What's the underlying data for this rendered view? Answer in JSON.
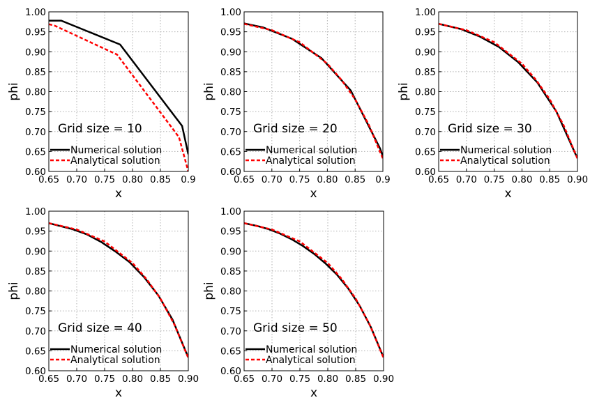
{
  "colors": {
    "numerical": "#000000",
    "analytical": "#ff0000",
    "grid": "#b0b0b0"
  },
  "chart_data": [
    {
      "type": "line",
      "annotation": "Grid size = 10",
      "xlabel": "x",
      "ylabel": "phi",
      "xlim": [
        0.65,
        0.9
      ],
      "ylim": [
        0.6,
        1.0
      ],
      "xticks": [
        "0.65",
        "0.70",
        "0.75",
        "0.80",
        "0.85",
        "0.9"
      ],
      "yticks": [
        "0.60",
        "0.65",
        "0.70",
        "0.75",
        "0.80",
        "0.85",
        "0.90",
        "0.95",
        "1.00"
      ],
      "grid": true,
      "legend_position": "lower-left",
      "series": [
        {
          "name": "Numerical solution",
          "style": "solid",
          "x": [
            0.65,
            0.6722,
            0.7778,
            0.8889,
            0.9
          ],
          "y": [
            0.978,
            0.978,
            0.918,
            0.714,
            0.643
          ]
        },
        {
          "name": "Analytical solution",
          "style": "dashed",
          "x": [
            0.65,
            0.6611,
            0.7722,
            0.8833,
            0.9
          ],
          "y": [
            0.969,
            0.965,
            0.893,
            0.686,
            0.6
          ]
        }
      ]
    },
    {
      "type": "line",
      "annotation": "Grid size = 20",
      "xlabel": "x",
      "ylabel": "phi",
      "xlim": [
        0.65,
        0.9
      ],
      "ylim": [
        0.6,
        1.0
      ],
      "xticks": [
        "0.65",
        "0.70",
        "0.75",
        "0.80",
        "0.85",
        "0.9"
      ],
      "yticks": [
        "0.60",
        "0.65",
        "0.70",
        "0.75",
        "0.80",
        "0.85",
        "0.90",
        "0.95",
        "1.00"
      ],
      "grid": true,
      "legend_position": "lower-left",
      "series": [
        {
          "name": "Numerical solution",
          "style": "solid",
          "x": [
            0.65,
            0.6842,
            0.7368,
            0.7895,
            0.8421,
            0.8947,
            0.9
          ],
          "y": [
            0.971,
            0.961,
            0.932,
            0.884,
            0.803,
            0.658,
            0.638
          ]
        },
        {
          "name": "Analytical solution",
          "style": "dashed",
          "x": [
            0.65,
            0.7,
            0.75,
            0.8,
            0.825,
            0.85,
            0.875,
            0.9
          ],
          "y": [
            0.97,
            0.954,
            0.924,
            0.87,
            0.83,
            0.781,
            0.716,
            0.632
          ]
        }
      ]
    },
    {
      "type": "line",
      "annotation": "Grid size = 30",
      "xlabel": "x",
      "ylabel": "phi",
      "xlim": [
        0.65,
        0.9
      ],
      "ylim": [
        0.6,
        1.0
      ],
      "xticks": [
        "0.65",
        "0.70",
        "0.75",
        "0.80",
        "0.85",
        "0.90"
      ],
      "yticks": [
        "0.60",
        "0.65",
        "0.70",
        "0.75",
        "0.80",
        "0.85",
        "0.90",
        "0.95",
        "1.00"
      ],
      "grid": true,
      "legend_position": "lower-left",
      "series": [
        {
          "name": "Numerical solution",
          "style": "solid",
          "x": [
            0.65,
            0.6897,
            0.7241,
            0.7586,
            0.7931,
            0.8276,
            0.8621,
            0.8966,
            0.9
          ],
          "y": [
            0.97,
            0.957,
            0.938,
            0.912,
            0.874,
            0.823,
            0.75,
            0.643,
            0.635
          ]
        },
        {
          "name": "Analytical solution",
          "style": "dashed",
          "x": [
            0.65,
            0.7,
            0.75,
            0.8,
            0.825,
            0.85,
            0.875,
            0.9
          ],
          "y": [
            0.97,
            0.954,
            0.924,
            0.87,
            0.83,
            0.781,
            0.716,
            0.632
          ]
        }
      ]
    },
    {
      "type": "line",
      "annotation": "Grid size = 40",
      "xlabel": "x",
      "ylabel": "phi",
      "xlim": [
        0.65,
        0.9
      ],
      "ylim": [
        0.6,
        1.0
      ],
      "xticks": [
        "0.65",
        "0.70",
        "0.75",
        "0.80",
        "0.85",
        "0.90"
      ],
      "yticks": [
        "0.60",
        "0.65",
        "0.70",
        "0.75",
        "0.80",
        "0.85",
        "0.90",
        "0.95",
        "1.00"
      ],
      "grid": true,
      "legend_position": "lower-left",
      "series": [
        {
          "name": "Numerical solution",
          "style": "solid",
          "x": [
            0.65,
            0.6923,
            0.7179,
            0.7436,
            0.7692,
            0.7949,
            0.8205,
            0.8462,
            0.8718,
            0.8974,
            0.9
          ],
          "y": [
            0.97,
            0.955,
            0.942,
            0.923,
            0.899,
            0.872,
            0.835,
            0.789,
            0.728,
            0.642,
            0.634
          ]
        },
        {
          "name": "Analytical solution",
          "style": "dashed",
          "x": [
            0.65,
            0.7,
            0.75,
            0.8,
            0.825,
            0.85,
            0.875,
            0.9
          ],
          "y": [
            0.97,
            0.954,
            0.924,
            0.87,
            0.83,
            0.781,
            0.716,
            0.632
          ]
        }
      ]
    },
    {
      "type": "line",
      "annotation": "Grid size = 50",
      "xlabel": "x",
      "ylabel": "phi",
      "xlim": [
        0.65,
        0.9
      ],
      "ylim": [
        0.6,
        1.0
      ],
      "xticks": [
        "0.65",
        "0.70",
        "0.75",
        "0.80",
        "0.85",
        "0.90"
      ],
      "yticks": [
        "0.60",
        "0.65",
        "0.70",
        "0.75",
        "0.80",
        "0.85",
        "0.90",
        "0.95",
        "1.00"
      ],
      "grid": true,
      "legend_position": "lower-left",
      "series": [
        {
          "name": "Numerical solution",
          "style": "solid",
          "x": [
            0.65,
            0.6735,
            0.6939,
            0.7143,
            0.7347,
            0.7551,
            0.7755,
            0.7959,
            0.8163,
            0.8367,
            0.8571,
            0.8776,
            0.898,
            0.9
          ],
          "y": [
            0.97,
            0.963,
            0.955,
            0.944,
            0.93,
            0.913,
            0.893,
            0.869,
            0.841,
            0.806,
            0.763,
            0.708,
            0.64,
            0.634
          ]
        },
        {
          "name": "Analytical solution",
          "style": "dashed",
          "x": [
            0.65,
            0.7,
            0.75,
            0.8,
            0.825,
            0.85,
            0.875,
            0.9
          ],
          "y": [
            0.97,
            0.954,
            0.924,
            0.87,
            0.83,
            0.781,
            0.716,
            0.632
          ]
        }
      ]
    }
  ]
}
